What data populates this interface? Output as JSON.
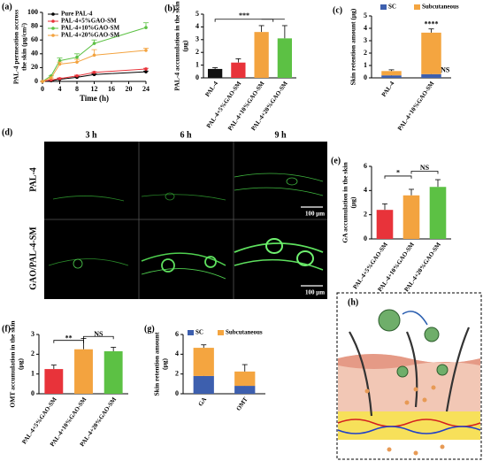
{
  "chart_data": [
    {
      "type": "line",
      "panel_label": "(a)",
      "ylabel": [
        "PAL-4 permeation accross",
        "the skin (μg/cm²)"
      ],
      "xlabel": "Time (h)",
      "x": [
        0,
        2,
        4,
        8,
        12,
        24
      ],
      "xlim": [
        0,
        24
      ],
      "xticks": [
        0,
        4,
        8,
        12,
        16,
        20,
        24
      ],
      "ylim": [
        0,
        100
      ],
      "yticks": [
        0,
        20,
        40,
        60,
        80,
        100
      ],
      "series": [
        {
          "name": "Pure PAL-4",
          "color": "#000000",
          "values": [
            0,
            1,
            3,
            6,
            10,
            14
          ],
          "errors": [
            0,
            0,
            1,
            1,
            1,
            1
          ]
        },
        {
          "name": "PAL-4+5%GAO-SM",
          "color": "#e8333a",
          "values": [
            0,
            2,
            4,
            8,
            13,
            18
          ],
          "errors": [
            0,
            0,
            1,
            1,
            1,
            1
          ]
        },
        {
          "name": "PAL-4+10%GAO-SM",
          "color": "#5cc144",
          "values": [
            0,
            8,
            30,
            35,
            55,
            78
          ],
          "errors": [
            0,
            0,
            4,
            5,
            5,
            7
          ]
        },
        {
          "name": "PAL-4+20%GAO-SM",
          "color": "#f3a33f",
          "values": [
            0,
            5,
            25,
            28,
            38,
            45
          ],
          "errors": [
            0,
            0,
            3,
            4,
            8,
            3
          ]
        }
      ]
    },
    {
      "type": "bar",
      "panel_label": "(b)",
      "ylabel": [
        "PAL-4 accumulation in the skin",
        "(μg)"
      ],
      "categories": [
        "PAL-4",
        "PAL-4+5%GAO-SM",
        "PAL-4+10%GAO-SM",
        "PAL-4+20%GAO-SM"
      ],
      "values": [
        0.7,
        1.2,
        3.6,
        3.1
      ],
      "errors": [
        0.1,
        0.3,
        0.5,
        1.0
      ],
      "colors": [
        "#111111",
        "#e8333a",
        "#f3a33f",
        "#5cc144"
      ],
      "ylim": [
        0,
        5
      ],
      "yticks": [
        0,
        1,
        2,
        3,
        4,
        5
      ],
      "annotations": [
        "***"
      ]
    },
    {
      "type": "stacked_bar",
      "panel_label": "(c)",
      "ylabel": [
        "Skin retention amount (μg)"
      ],
      "categories": [
        "PAL-4",
        "PAL-4+10%GAO-SM"
      ],
      "series": [
        {
          "name": "SC",
          "color": "#3d5fae",
          "values": [
            0.2,
            0.3
          ],
          "errors": [
            0.05,
            0.05
          ]
        },
        {
          "name": "Subcutaneous",
          "color": "#f4a540",
          "values": [
            0.35,
            3.35
          ],
          "errors": [
            0.1,
            0.3
          ]
        }
      ],
      "ylim": [
        0,
        5
      ],
      "yticks": [
        0,
        1,
        2,
        3,
        4,
        5
      ],
      "annotations": [
        "****",
        "NS"
      ]
    },
    {
      "type": "bar",
      "panel_label": "(e)",
      "ylabel": [
        "GA accumulation in the skin",
        "(μg)"
      ],
      "categories": [
        "PAL-4+5%GAO-SM",
        "PAL-4+10%GAO-SM",
        "PAL-4+20%GAO-SM"
      ],
      "values": [
        2.4,
        3.6,
        4.3
      ],
      "errors": [
        0.5,
        0.5,
        0.6
      ],
      "colors": [
        "#e8333a",
        "#f3a33f",
        "#5cc144"
      ],
      "ylim": [
        0,
        6
      ],
      "yticks": [
        0,
        2,
        4,
        6
      ],
      "annotations": [
        "*",
        "NS"
      ]
    },
    {
      "type": "bar",
      "panel_label": "(f)",
      "ylabel": [
        "OMT accumulation in the skin",
        "(μg)"
      ],
      "categories": [
        "PAL-4+5%GAO-SM",
        "PAL-4+10%GAO-SM",
        "PAL-4+20%GAO-SM"
      ],
      "values": [
        1.25,
        2.25,
        2.15
      ],
      "errors": [
        0.2,
        0.55,
        0.2
      ],
      "colors": [
        "#e8333a",
        "#f3a33f",
        "#5cc144"
      ],
      "ylim": [
        0,
        3
      ],
      "yticks": [
        0,
        1,
        2,
        3
      ],
      "annotations": [
        "**",
        "NS"
      ]
    },
    {
      "type": "stacked_bar",
      "panel_label": "(g)",
      "ylabel": [
        "Skin retention amount",
        "(μg)"
      ],
      "categories": [
        "GA",
        "OMT"
      ],
      "series": [
        {
          "name": "SC",
          "color": "#3d5fae",
          "values": [
            1.8,
            0.8
          ],
          "errors": [
            0.2,
            0.1
          ]
        },
        {
          "name": "Subcutaneous",
          "color": "#f4a540",
          "values": [
            2.85,
            1.45
          ],
          "errors": [
            0.3,
            0.7
          ]
        }
      ],
      "ylim": [
        0,
        6
      ],
      "yticks": [
        0,
        2,
        4,
        6
      ]
    }
  ],
  "micrograph": {
    "label": "(d)",
    "columns": [
      "3 h",
      "6 h",
      "9 h"
    ],
    "rows": [
      "PAL-4",
      "GAO/PAL-4-SM"
    ],
    "scale_bars": [
      "100 μm",
      "100 μm"
    ]
  },
  "schematic": {
    "label": "(h)"
  }
}
